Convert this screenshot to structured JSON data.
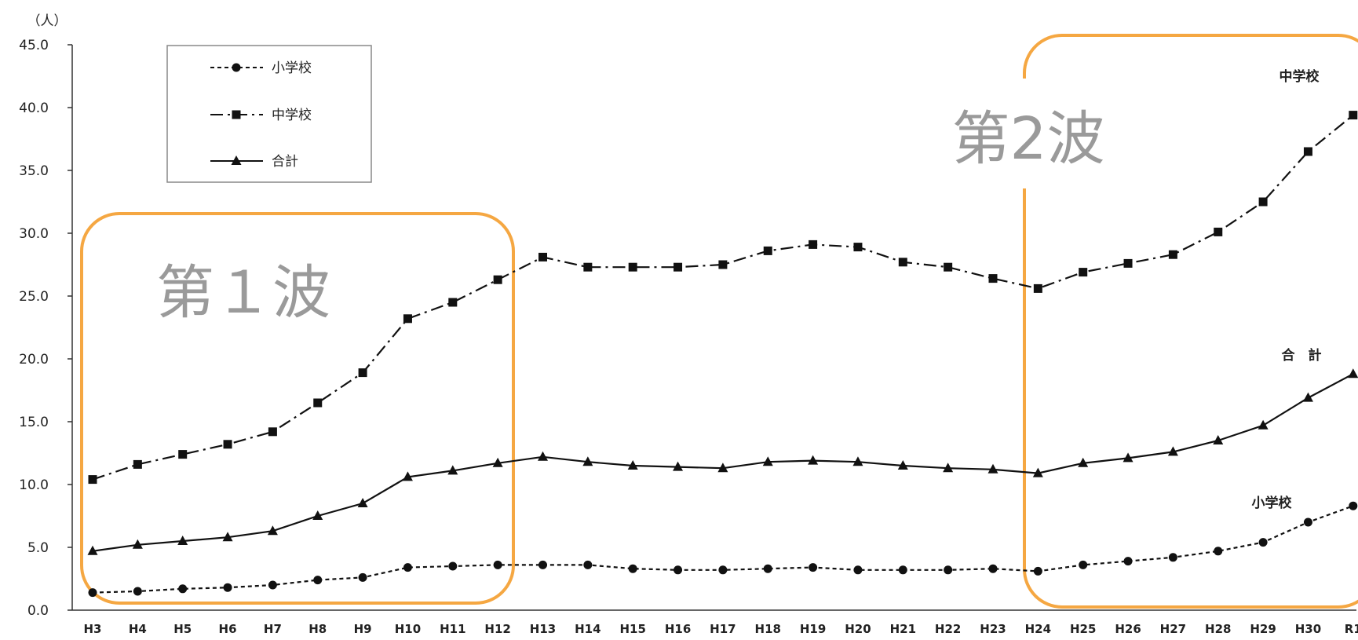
{
  "chart_data": {
    "type": "line",
    "unit_label": "（人）",
    "ylim": [
      0,
      45
    ],
    "y_ticks": [
      "0.0",
      "5.0",
      "10.0",
      "15.0",
      "20.0",
      "25.0",
      "30.0",
      "35.0",
      "40.0",
      "45.0"
    ],
    "categories": [
      "H3",
      "H4",
      "H5",
      "H6",
      "H7",
      "H8",
      "H9",
      "H10",
      "H11",
      "H12",
      "H13",
      "H14",
      "H15",
      "H16",
      "H17",
      "H18",
      "H19",
      "H20",
      "H21",
      "H22",
      "H23",
      "H24",
      "H25",
      "H26",
      "H27",
      "H28",
      "H29",
      "H30",
      "R1"
    ],
    "series": [
      {
        "key": "elementary",
        "name": "小学校",
        "end_label": "小学校",
        "line_style": "dotted",
        "marker": "circle",
        "values": [
          1.4,
          1.5,
          1.7,
          1.8,
          2.0,
          2.4,
          2.6,
          3.4,
          3.5,
          3.6,
          3.6,
          3.6,
          3.3,
          3.2,
          3.2,
          3.3,
          3.4,
          3.2,
          3.2,
          3.2,
          3.3,
          3.1,
          3.6,
          3.9,
          4.2,
          4.7,
          5.4,
          7.0,
          8.3
        ]
      },
      {
        "key": "junior_high",
        "name": "中学校",
        "end_label": "中学校",
        "line_style": "dash-dot",
        "marker": "square",
        "values": [
          10.4,
          11.6,
          12.4,
          13.2,
          14.2,
          16.5,
          18.9,
          23.2,
          24.5,
          26.3,
          28.1,
          27.3,
          27.3,
          27.3,
          27.5,
          28.6,
          29.1,
          28.9,
          27.7,
          27.3,
          26.4,
          25.6,
          26.9,
          27.6,
          28.3,
          30.1,
          32.5,
          36.5,
          39.4
        ]
      },
      {
        "key": "total",
        "name": "合計",
        "end_label": "合　計",
        "line_style": "solid",
        "marker": "triangle",
        "values": [
          4.7,
          5.2,
          5.5,
          5.8,
          6.3,
          7.5,
          8.5,
          10.6,
          11.1,
          11.7,
          12.2,
          11.8,
          11.5,
          11.4,
          11.3,
          11.8,
          11.9,
          11.8,
          11.5,
          11.3,
          11.2,
          10.9,
          11.7,
          12.1,
          12.6,
          13.5,
          14.7,
          16.9,
          18.8
        ]
      }
    ],
    "legend": {
      "position": "top-left",
      "entries": [
        "小学校",
        "中学校",
        "合計"
      ]
    },
    "annotations": [
      {
        "label": "第１波",
        "from": "H3",
        "to": "H12"
      },
      {
        "label": "第2波",
        "from": "H24",
        "to": "R1"
      }
    ],
    "colors": {
      "lines": "#111111",
      "highlight_box": "#f5a742",
      "wave_text": "#9a9a9a"
    },
    "grid": false
  }
}
